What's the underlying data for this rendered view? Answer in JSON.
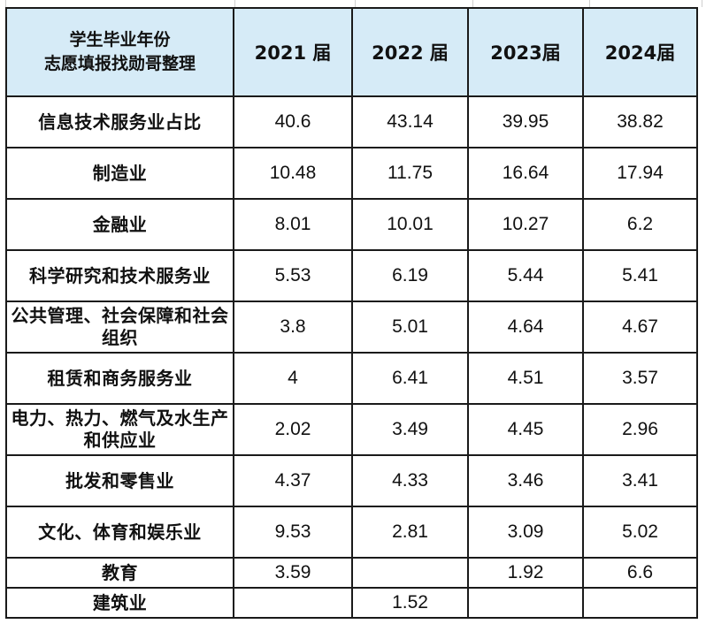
{
  "table": {
    "corner_line1": "学生毕业年份",
    "corner_line2": "志愿填报找勋哥整理",
    "years": [
      "2021 届",
      "2022 届",
      "2023届",
      "2024届"
    ],
    "rows": [
      {
        "label": "信息技术服务业占比",
        "values": [
          "40.6",
          "43.14",
          "39.95",
          "38.82"
        ]
      },
      {
        "label": "制造业",
        "values": [
          "10.48",
          "11.75",
          "16.64",
          "17.94"
        ]
      },
      {
        "label": "金融业",
        "values": [
          "8.01",
          "10.01",
          "10.27",
          "6.2"
        ]
      },
      {
        "label": "科学研究和技术服务业",
        "values": [
          "5.53",
          "6.19",
          "5.44",
          "5.41"
        ]
      },
      {
        "label": "公共管理、社会保障和社会组织",
        "values": [
          "3.8",
          "5.01",
          "4.64",
          "4.67"
        ]
      },
      {
        "label": "租赁和商务服务业",
        "values": [
          "4",
          "6.41",
          "4.51",
          "3.57"
        ]
      },
      {
        "label": "电力、热力、燃气及水生产和供应业",
        "values": [
          "2.02",
          "3.49",
          "4.45",
          "2.96"
        ]
      },
      {
        "label": "批发和零售业",
        "values": [
          "4.37",
          "4.33",
          "3.46",
          "3.41"
        ]
      },
      {
        "label": "文化、体育和娱乐业",
        "values": [
          "9.53",
          "2.81",
          "3.09",
          "5.02"
        ]
      },
      {
        "label": "教育",
        "values": [
          "3.59",
          "",
          "1.92",
          "6.6"
        ]
      },
      {
        "label": "建筑业",
        "values": [
          "",
          "1.52",
          "",
          ""
        ]
      }
    ]
  }
}
